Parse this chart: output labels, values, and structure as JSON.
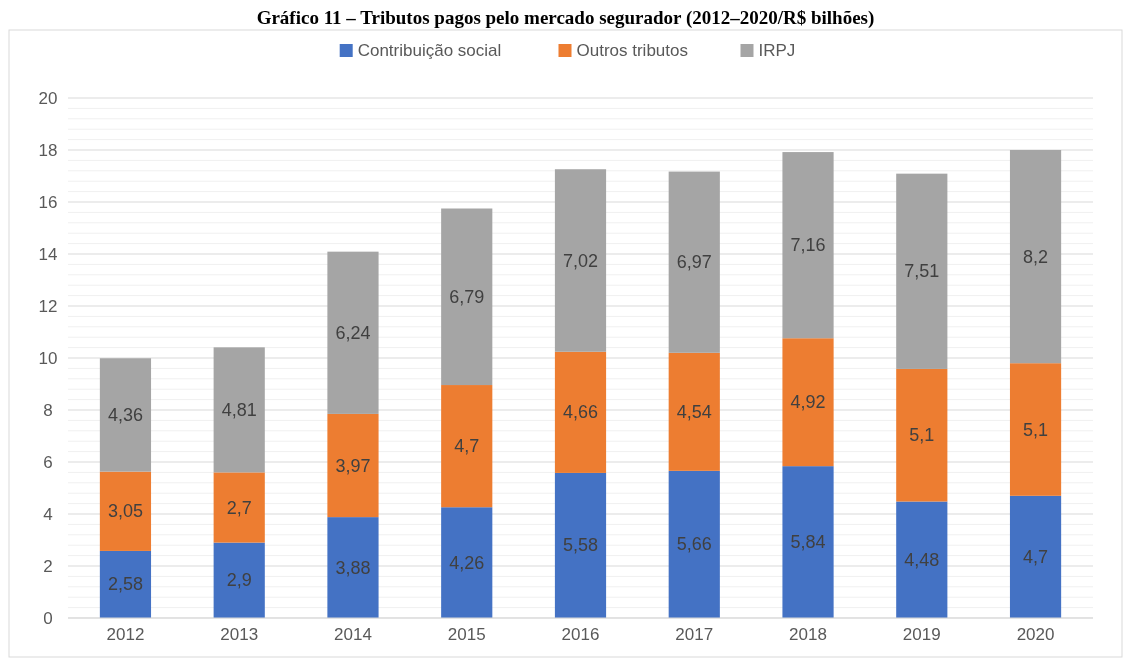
{
  "chart_data": {
    "type": "bar",
    "title": "Gráfico 11 – Tributos pagos pelo mercado segurador (2012–2020/R$ bilhões)",
    "stacked": true,
    "categories": [
      "2012",
      "2013",
      "2014",
      "2015",
      "2016",
      "2017",
      "2018",
      "2019",
      "2020"
    ],
    "series": [
      {
        "name": "Contribuição social",
        "color": "#4472c4",
        "values": [
          2.58,
          2.9,
          3.88,
          4.26,
          5.58,
          5.66,
          5.84,
          4.48,
          4.7
        ],
        "value_labels": [
          "2,58",
          "2,9",
          "3,88",
          "4,26",
          "5,58",
          "5,66",
          "5,84",
          "4,48",
          "4,7"
        ]
      },
      {
        "name": "Outros tributos",
        "color": "#ed7d31",
        "values": [
          3.05,
          2.7,
          3.97,
          4.7,
          4.66,
          4.54,
          4.92,
          5.1,
          5.1
        ],
        "value_labels": [
          "3,05",
          "2,7",
          "3,97",
          "4,7",
          "4,66",
          "4,54",
          "4,92",
          "5,1",
          "5,1"
        ]
      },
      {
        "name": "IRPJ",
        "color": "#a5a5a5",
        "values": [
          4.36,
          4.81,
          6.24,
          6.79,
          7.02,
          6.97,
          7.16,
          7.51,
          8.2
        ],
        "value_labels": [
          "4,36",
          "4,81",
          "6,24",
          "6,79",
          "7,02",
          "6,97",
          "7,16",
          "7,51",
          "8,2"
        ]
      }
    ],
    "ylim": [
      0,
      20
    ],
    "yticks": [
      0,
      2,
      4,
      6,
      8,
      10,
      12,
      14,
      16,
      18,
      20
    ],
    "grid": "y",
    "legend": "top"
  }
}
